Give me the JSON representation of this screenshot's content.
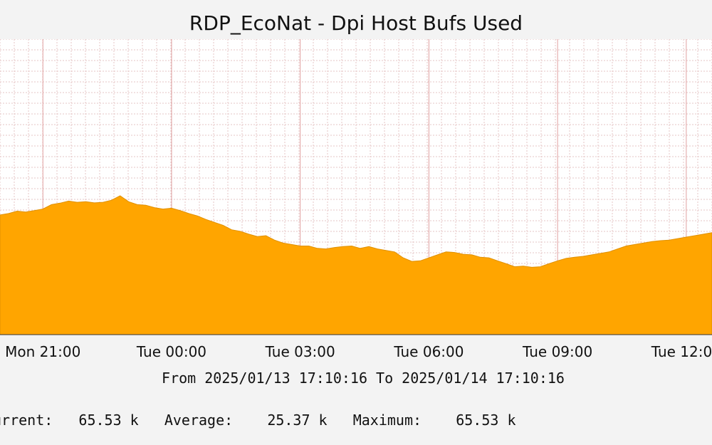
{
  "chart_data": {
    "type": "area",
    "title": "RDP_EcoNat - Dpi Host Bufs Used",
    "xlabel": "",
    "ylabel": "",
    "x_tick_labels": [
      "Mon 21:00",
      "Tue 00:00",
      "Tue 03:00",
      "Tue 06:00",
      "Tue 09:00",
      "Tue 12:00"
    ],
    "x_range_hours": [
      -4.0,
      12.6
    ],
    "x_tick_hours": [
      -3,
      0,
      3,
      6,
      9,
      12
    ],
    "ylim": [
      0,
      1
    ],
    "grid": true,
    "series": [
      {
        "color": "#ffa500",
        "x_hours": [
          -4.0,
          -3.8,
          -3.6,
          -3.4,
          -3.2,
          -3.0,
          -2.8,
          -2.6,
          -2.4,
          -2.2,
          -2.0,
          -1.8,
          -1.6,
          -1.4,
          -1.2,
          -1.0,
          -0.8,
          -0.6,
          -0.4,
          -0.2,
          0.0,
          0.2,
          0.4,
          0.6,
          0.8,
          1.0,
          1.2,
          1.4,
          1.6,
          1.8,
          2.0,
          2.2,
          2.4,
          2.6,
          2.8,
          3.0,
          3.2,
          3.4,
          3.6,
          3.8,
          4.0,
          4.2,
          4.4,
          4.6,
          4.8,
          5.0,
          5.2,
          5.4,
          5.6,
          5.8,
          6.0,
          6.2,
          6.4,
          6.6,
          6.8,
          7.0,
          7.2,
          7.4,
          7.6,
          7.8,
          8.0,
          8.2,
          8.4,
          8.6,
          8.8,
          9.0,
          9.2,
          9.4,
          9.6,
          9.8,
          10.0,
          10.2,
          10.4,
          10.6,
          10.8,
          11.0,
          11.2,
          11.4,
          11.6,
          11.8,
          12.0,
          12.2,
          12.4,
          12.6
        ],
        "values": [
          0.405,
          0.41,
          0.418,
          0.415,
          0.42,
          0.425,
          0.44,
          0.445,
          0.452,
          0.448,
          0.45,
          0.446,
          0.448,
          0.455,
          0.47,
          0.45,
          0.44,
          0.438,
          0.43,
          0.425,
          0.428,
          0.42,
          0.41,
          0.402,
          0.39,
          0.38,
          0.37,
          0.355,
          0.35,
          0.34,
          0.332,
          0.335,
          0.32,
          0.31,
          0.305,
          0.3,
          0.3,
          0.292,
          0.29,
          0.295,
          0.298,
          0.3,
          0.292,
          0.298,
          0.29,
          0.285,
          0.28,
          0.26,
          0.248,
          0.25,
          0.26,
          0.27,
          0.28,
          0.278,
          0.272,
          0.27,
          0.262,
          0.26,
          0.25,
          0.24,
          0.23,
          0.232,
          0.228,
          0.23,
          0.24,
          0.25,
          0.258,
          0.262,
          0.265,
          0.27,
          0.275,
          0.28,
          0.29,
          0.3,
          0.305,
          0.31,
          0.315,
          0.318,
          0.32,
          0.325,
          0.33,
          0.335,
          0.34,
          0.345
        ]
      }
    ]
  },
  "footer": {
    "date_range": "From 2025/01/13 17:10:16 To 2025/01/14 17:10:16",
    "stats": "urrent:   65.53 k   Average:    25.37 k   Maximum:    65.53 k"
  }
}
